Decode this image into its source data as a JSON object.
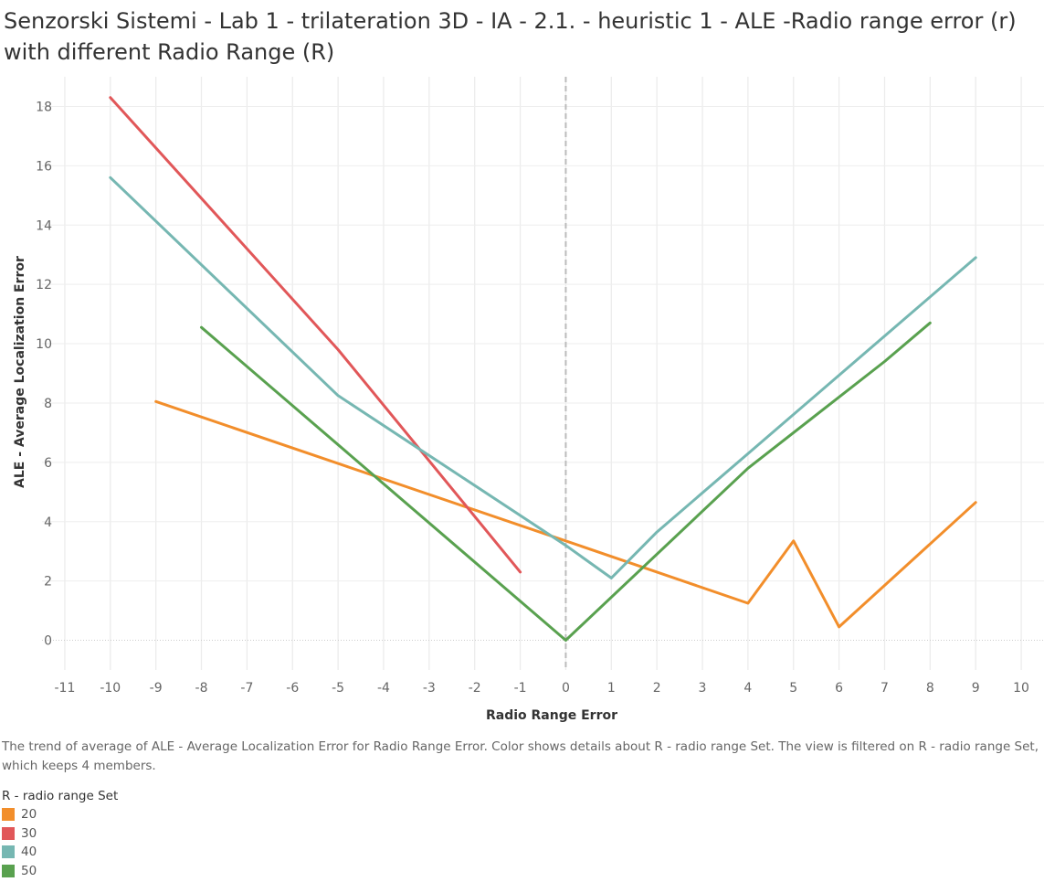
{
  "page": {
    "title": "Senzorski Sistemi - Lab 1 - trilateration 3D - IA - 2.1. - heuristic 1 - ALE -Radio range error (r) with different Radio Range (R)",
    "caption": "The trend of average of ALE - Average Localization Error for Radio Range Error.  Color shows details about R - radio range Set. The view is filtered on R - radio range Set, which keeps 4 members."
  },
  "legend": {
    "title": "R - radio range Set",
    "items": [
      {
        "label": "20",
        "color": "#F28E2B"
      },
      {
        "label": "30",
        "color": "#E15759"
      },
      {
        "label": "40",
        "color": "#76B7B2"
      },
      {
        "label": "50",
        "color": "#59A14F"
      }
    ]
  },
  "chart_data": {
    "type": "line",
    "xlabel": "Radio Range Error",
    "ylabel": "ALE - Average Localization Error",
    "xlim": [
      -11.5,
      10.5
    ],
    "ylim": [
      -1,
      19
    ],
    "xticks": [
      -11,
      -10,
      -9,
      -8,
      -7,
      -6,
      -5,
      -4,
      -3,
      -2,
      -1,
      0,
      1,
      2,
      3,
      4,
      5,
      6,
      7,
      8,
      9,
      10
    ],
    "yticks": [
      0,
      2,
      4,
      6,
      8,
      10,
      12,
      14,
      16,
      18
    ],
    "reference_line_x": 0,
    "grid": true,
    "legend_position": "bottom-left",
    "series": [
      {
        "name": "20",
        "color": "#F28E2B",
        "points": [
          [
            -9,
            8.05
          ],
          [
            0,
            3.35
          ],
          [
            4,
            1.25
          ],
          [
            5,
            3.35
          ],
          [
            6,
            0.45
          ],
          [
            9,
            4.65
          ]
        ]
      },
      {
        "name": "30",
        "color": "#E15759",
        "points": [
          [
            -10,
            18.3
          ],
          [
            -5,
            9.8
          ],
          [
            -1,
            2.3
          ]
        ]
      },
      {
        "name": "40",
        "color": "#76B7B2",
        "points": [
          [
            -10,
            15.6
          ],
          [
            -5,
            8.25
          ],
          [
            0,
            3.2
          ],
          [
            1,
            2.1
          ],
          [
            2,
            3.65
          ],
          [
            9,
            12.9
          ]
        ]
      },
      {
        "name": "50",
        "color": "#59A14F",
        "points": [
          [
            -8,
            10.55
          ],
          [
            0,
            0.0
          ],
          [
            4,
            5.8
          ],
          [
            7,
            9.4
          ],
          [
            8,
            10.7
          ]
        ]
      }
    ]
  }
}
